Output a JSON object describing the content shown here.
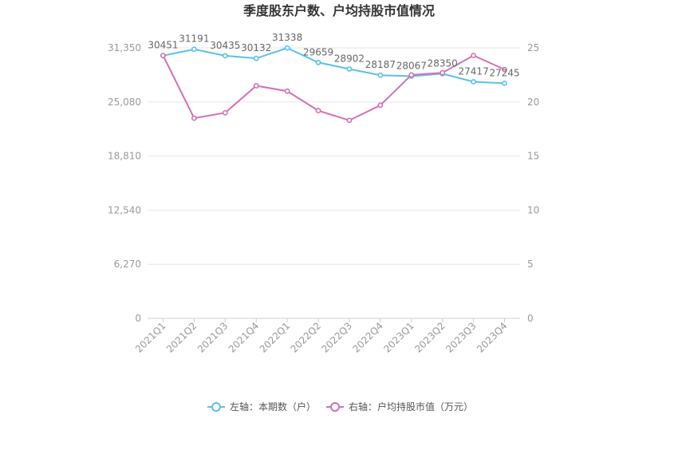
{
  "chart_data": {
    "type": "line",
    "title": "季度股东户数、户均持股市值情况",
    "categories": [
      "2021Q1",
      "2021Q2",
      "2021Q3",
      "2021Q4",
      "2022Q1",
      "2022Q2",
      "2022Q3",
      "2022Q4",
      "2023Q1",
      "2023Q2",
      "2023Q3",
      "2023Q4"
    ],
    "left_axis": {
      "ylim": [
        0,
        31350
      ],
      "ticks": [
        0,
        6270,
        12540,
        18810,
        25080,
        31350
      ],
      "tick_labels": [
        "0",
        "6,270",
        "12,540",
        "18,810",
        "25,080",
        "31,350"
      ]
    },
    "right_axis": {
      "ylim": [
        0,
        25
      ],
      "ticks": [
        0,
        5,
        10,
        15,
        20,
        25
      ],
      "tick_labels": [
        "0",
        "5",
        "10",
        "15",
        "20",
        "25"
      ]
    },
    "series": [
      {
        "name": "左轴：本期数（户）",
        "axis": "left",
        "color": "#5bc0eb",
        "values": [
          30451,
          31191,
          30435,
          30132,
          31338,
          29659,
          28902,
          28187,
          28067,
          28350,
          27417,
          27245
        ],
        "labels": [
          "30451",
          "31191",
          "30435",
          "30132",
          "31338",
          "29659",
          "28902",
          "28187",
          "28067",
          "28350",
          "27417",
          "27245"
        ]
      },
      {
        "name": "右轴：户均持股市值（万元）",
        "axis": "right",
        "color": "#d56fb4",
        "values": [
          24.3,
          18.5,
          19.0,
          21.5,
          21.0,
          19.2,
          18.3,
          19.7,
          22.5,
          22.7,
          24.3,
          23.0
        ]
      }
    ],
    "grid": true,
    "legend_position": "bottom"
  }
}
